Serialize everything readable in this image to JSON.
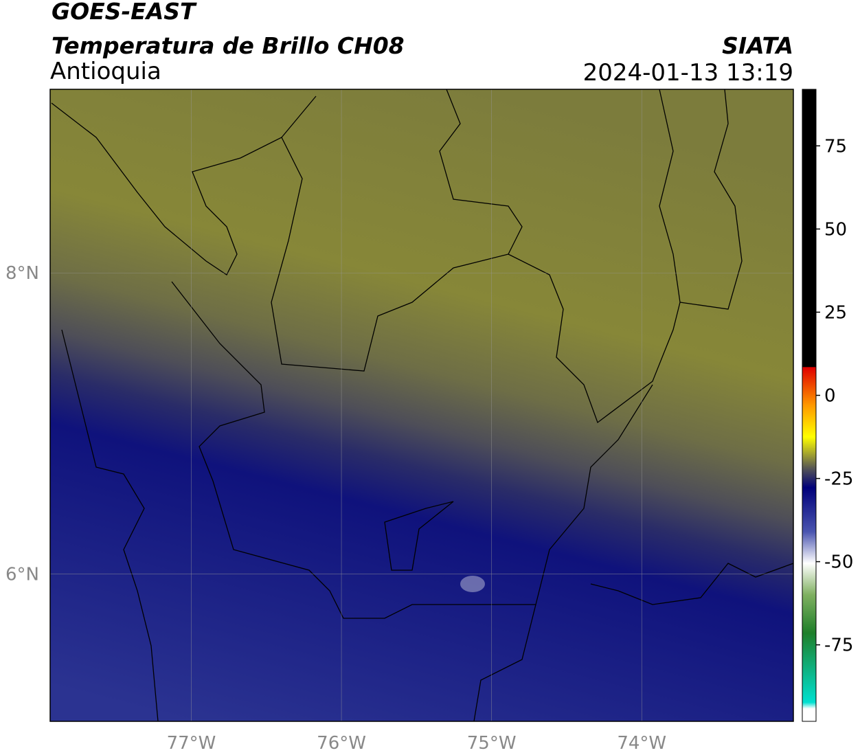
{
  "header": {
    "title": "GOES-EAST",
    "subtitle": "Temperatura de Brillo CH08",
    "region": "Antioquia",
    "source": "SIATA",
    "datetime": "2024-01-13 13:19"
  },
  "map": {
    "lonlim": [
      -77.94,
      -72.99
    ],
    "latlim": [
      5.02,
      9.22
    ],
    "lon_ticks": [
      {
        "value": -77,
        "label": "77°W"
      },
      {
        "value": -76,
        "label": "76°W"
      },
      {
        "value": -75,
        "label": "75°W"
      },
      {
        "value": -74,
        "label": "74°W"
      }
    ],
    "lat_ticks": [
      {
        "value": 8,
        "label": "8°N"
      },
      {
        "value": 6,
        "label": "6°N"
      }
    ]
  },
  "colorbar": {
    "lim": [
      -98,
      92
    ],
    "ticks": [
      75,
      50,
      25,
      0,
      -25,
      -50,
      -75
    ]
  }
}
